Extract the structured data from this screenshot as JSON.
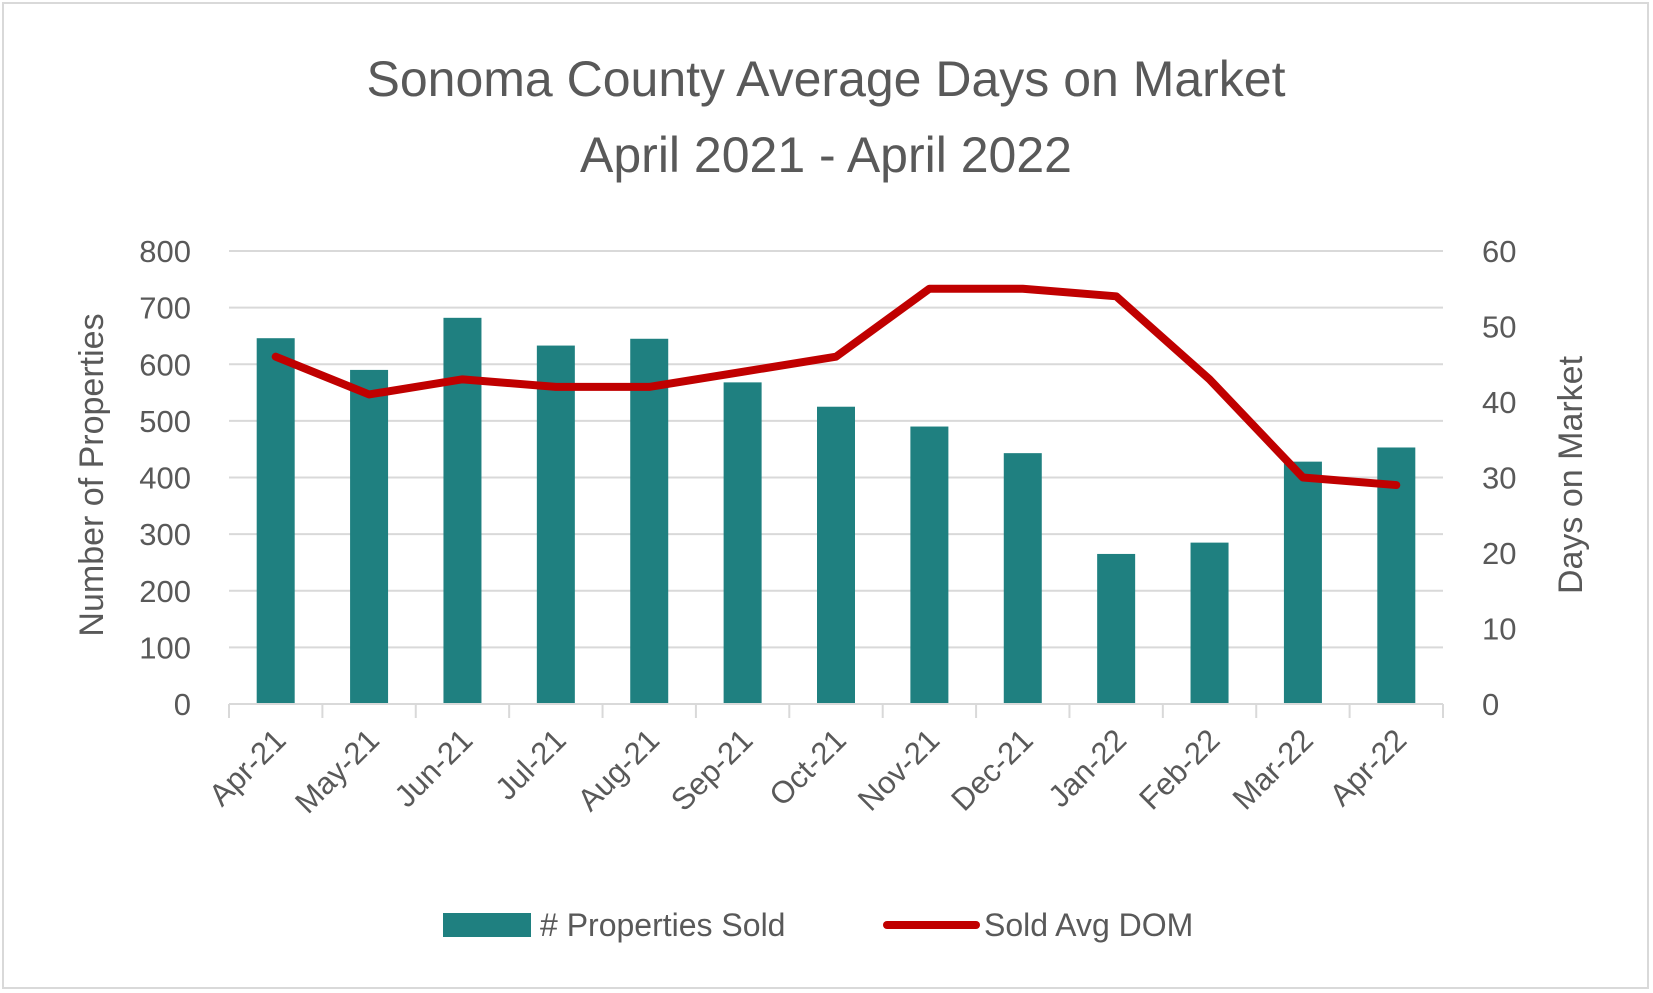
{
  "chart_data": {
    "type": "bar",
    "title": "Sonoma County Average Days on Market",
    "subtitle": "April 2021 - April 2022",
    "categories": [
      "Apr-21",
      "May-21",
      "Jun-21",
      "Jul-21",
      "Aug-21",
      "Sep-21",
      "Oct-21",
      "Nov-21",
      "Dec-21",
      "Jan-22",
      "Feb-22",
      "Mar-22",
      "Apr-22"
    ],
    "ylabel": "Number of Properties",
    "y2label": "Days on Market",
    "ylim": [
      0,
      800
    ],
    "y2lim": [
      0,
      60
    ],
    "yticks": [
      0,
      100,
      200,
      300,
      400,
      500,
      600,
      700,
      800
    ],
    "y2ticks": [
      0,
      10,
      20,
      30,
      40,
      50,
      60
    ],
    "grid": true,
    "legend_position": "bottom",
    "series": [
      {
        "name": "# Properties Sold",
        "type": "bar",
        "axis": "left",
        "color": "#1f8080",
        "values": [
          646,
          590,
          682,
          633,
          645,
          568,
          525,
          490,
          443,
          265,
          285,
          428,
          453
        ]
      },
      {
        "name": "Sold Avg DOM",
        "type": "line",
        "axis": "right",
        "color": "#c00000",
        "values": [
          46,
          41,
          43,
          42,
          42,
          44,
          46,
          55,
          55,
          54,
          43,
          30,
          29
        ]
      }
    ]
  }
}
